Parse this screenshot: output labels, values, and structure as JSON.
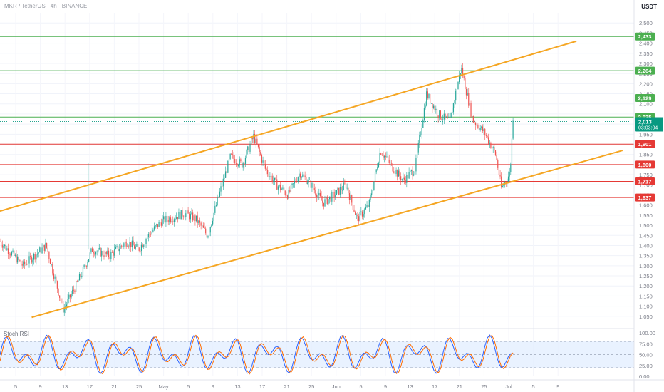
{
  "header": {
    "title": "MKR / TetherUS · 4h · BINANCE",
    "unit": "USDT"
  },
  "stoch": {
    "label": "Stoch RSI",
    "ticks": [
      "100.00",
      "75.00",
      "50.00",
      "25.00",
      "0.00"
    ]
  },
  "colors": {
    "up": "#26a69a",
    "down": "#ef5350",
    "green_level": "#4caf50",
    "red_level": "#e53935",
    "channel": "#f5a623",
    "k_line": "#2962ff",
    "d_line": "#ff6d00",
    "last_price": "#089981"
  },
  "chart_data": {
    "type": "candlestick",
    "title": "MKR / TetherUS · 4h · BINANCE",
    "y_unit": "USDT",
    "ylim": [
      1000,
      2550
    ],
    "x_labels": [
      "5",
      "9",
      "13",
      "17",
      "21",
      "25",
      "May",
      "5",
      "9",
      "13",
      "17",
      "21",
      "25",
      "Jun",
      "5",
      "9",
      "13",
      "17",
      "21",
      "25",
      "Jul",
      "5",
      "9"
    ],
    "y_ticks": [
      "2,500",
      "2,450",
      "2,400",
      "2,350",
      "2,300",
      "2,250",
      "2,200",
      "2,150",
      "2,100",
      "2,050",
      "2,000",
      "1,950",
      "1,900",
      "1,850",
      "1,800",
      "1,750",
      "1,700",
      "1,650",
      "1,600",
      "1,550",
      "1,500",
      "1,450",
      "1,400",
      "1,350",
      "1,300",
      "1,250",
      "1,200",
      "1,150",
      "1,100",
      "1,050"
    ],
    "resistance_levels": [
      {
        "value": 2433,
        "label": "2,433"
      },
      {
        "value": 2264,
        "label": "2,264"
      },
      {
        "value": 2129,
        "label": "2,129"
      },
      {
        "value": 2035,
        "label": "2,035"
      }
    ],
    "support_levels": [
      {
        "value": 1901,
        "label": "1,901"
      },
      {
        "value": 1800,
        "label": "1,800"
      },
      {
        "value": 1717,
        "label": "1,717"
      },
      {
        "value": 1637,
        "label": "1,637"
      }
    ],
    "last_price": {
      "value": 2013,
      "label": "2,013",
      "countdown": "03:03:04"
    },
    "price_path": [
      {
        "x": 0,
        "v": 1420
      },
      {
        "x": 4,
        "v": 1300
      },
      {
        "x": 8,
        "v": 1400
      },
      {
        "x": 11,
        "v": 1080
      },
      {
        "x": 14,
        "v": 1250
      },
      {
        "x": 16,
        "v": 1380
      },
      {
        "x": 19,
        "v": 1350
      },
      {
        "x": 22,
        "v": 1420
      },
      {
        "x": 24,
        "v": 1380
      },
      {
        "x": 26,
        "v": 1460
      },
      {
        "x": 28,
        "v": 1520
      },
      {
        "x": 30,
        "v": 1540
      },
      {
        "x": 32,
        "v": 1560
      },
      {
        "x": 34,
        "v": 1530
      },
      {
        "x": 36,
        "v": 1450
      },
      {
        "x": 38,
        "v": 1650
      },
      {
        "x": 40,
        "v": 1840
      },
      {
        "x": 42,
        "v": 1800
      },
      {
        "x": 44,
        "v": 1940
      },
      {
        "x": 46,
        "v": 1780
      },
      {
        "x": 48,
        "v": 1700
      },
      {
        "x": 50,
        "v": 1650
      },
      {
        "x": 52,
        "v": 1760
      },
      {
        "x": 54,
        "v": 1700
      },
      {
        "x": 56,
        "v": 1610
      },
      {
        "x": 58,
        "v": 1650
      },
      {
        "x": 60,
        "v": 1700
      },
      {
        "x": 62,
        "v": 1530
      },
      {
        "x": 64,
        "v": 1600
      },
      {
        "x": 66,
        "v": 1870
      },
      {
        "x": 68,
        "v": 1790
      },
      {
        "x": 70,
        "v": 1720
      },
      {
        "x": 72,
        "v": 1780
      },
      {
        "x": 74,
        "v": 2150
      },
      {
        "x": 76,
        "v": 2050
      },
      {
        "x": 78,
        "v": 2010
      },
      {
        "x": 80,
        "v": 2280
      },
      {
        "x": 82,
        "v": 2020
      },
      {
        "x": 84,
        "v": 1960
      },
      {
        "x": 86,
        "v": 1850
      },
      {
        "x": 87,
        "v": 1680
      },
      {
        "x": 88.5,
        "v": 1760
      },
      {
        "x": 89,
        "v": 2035
      }
    ],
    "channel_upper": [
      {
        "x": 0,
        "v": 1570
      },
      {
        "x": 100,
        "v": 2410
      }
    ],
    "channel_lower": [
      {
        "x": 5.5,
        "v": 1045
      },
      {
        "x": 108,
        "v": 1870
      }
    ],
    "stoch_rsi": {
      "ylim": [
        0,
        100
      ],
      "bands": [
        20,
        80
      ]
    }
  }
}
